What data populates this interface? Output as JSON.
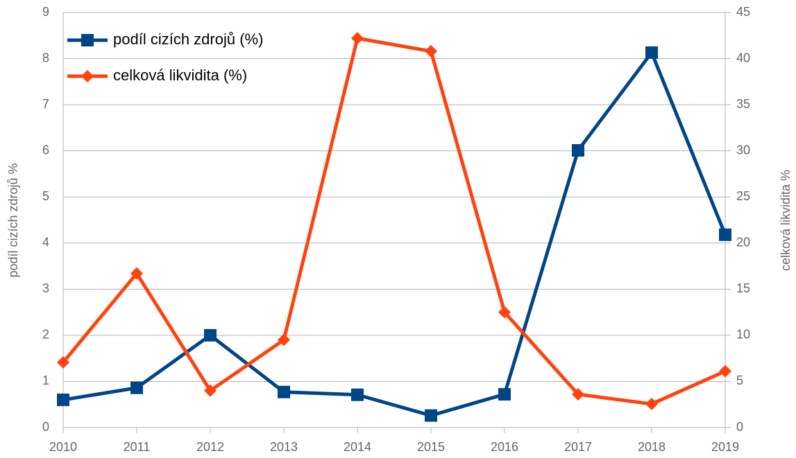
{
  "chart_data": {
    "type": "line",
    "categories": [
      "2010",
      "2011",
      "2012",
      "2013",
      "2014",
      "2015",
      "2016",
      "2017",
      "2018",
      "2019"
    ],
    "series": [
      {
        "name": "podíl cizích zdrojů (%)",
        "color": "#004586",
        "marker": "square",
        "axis": "y",
        "values": [
          0.6,
          0.86,
          2.0,
          0.77,
          0.71,
          0.26,
          0.72,
          6.01,
          8.13,
          4.18
        ]
      },
      {
        "name": "celková likvidita (%)",
        "color": "#ff420e",
        "marker": "diamond",
        "axis": "y2",
        "values": [
          7.06,
          16.7,
          4.0,
          9.5,
          42.2,
          40.8,
          12.5,
          3.6,
          2.55,
          6.1
        ]
      }
    ],
    "ylabel": "podíl cizích zdrojů %",
    "y2label": "celková likvidita %",
    "ylim": [
      0,
      9
    ],
    "yticks": [
      0,
      1,
      2,
      3,
      4,
      5,
      6,
      7,
      8,
      9
    ],
    "y2lim": [
      0,
      45
    ],
    "y2ticks": [
      0,
      5,
      10,
      15,
      20,
      25,
      30,
      35,
      40,
      45
    ],
    "grid": true,
    "legend": "upper left"
  }
}
